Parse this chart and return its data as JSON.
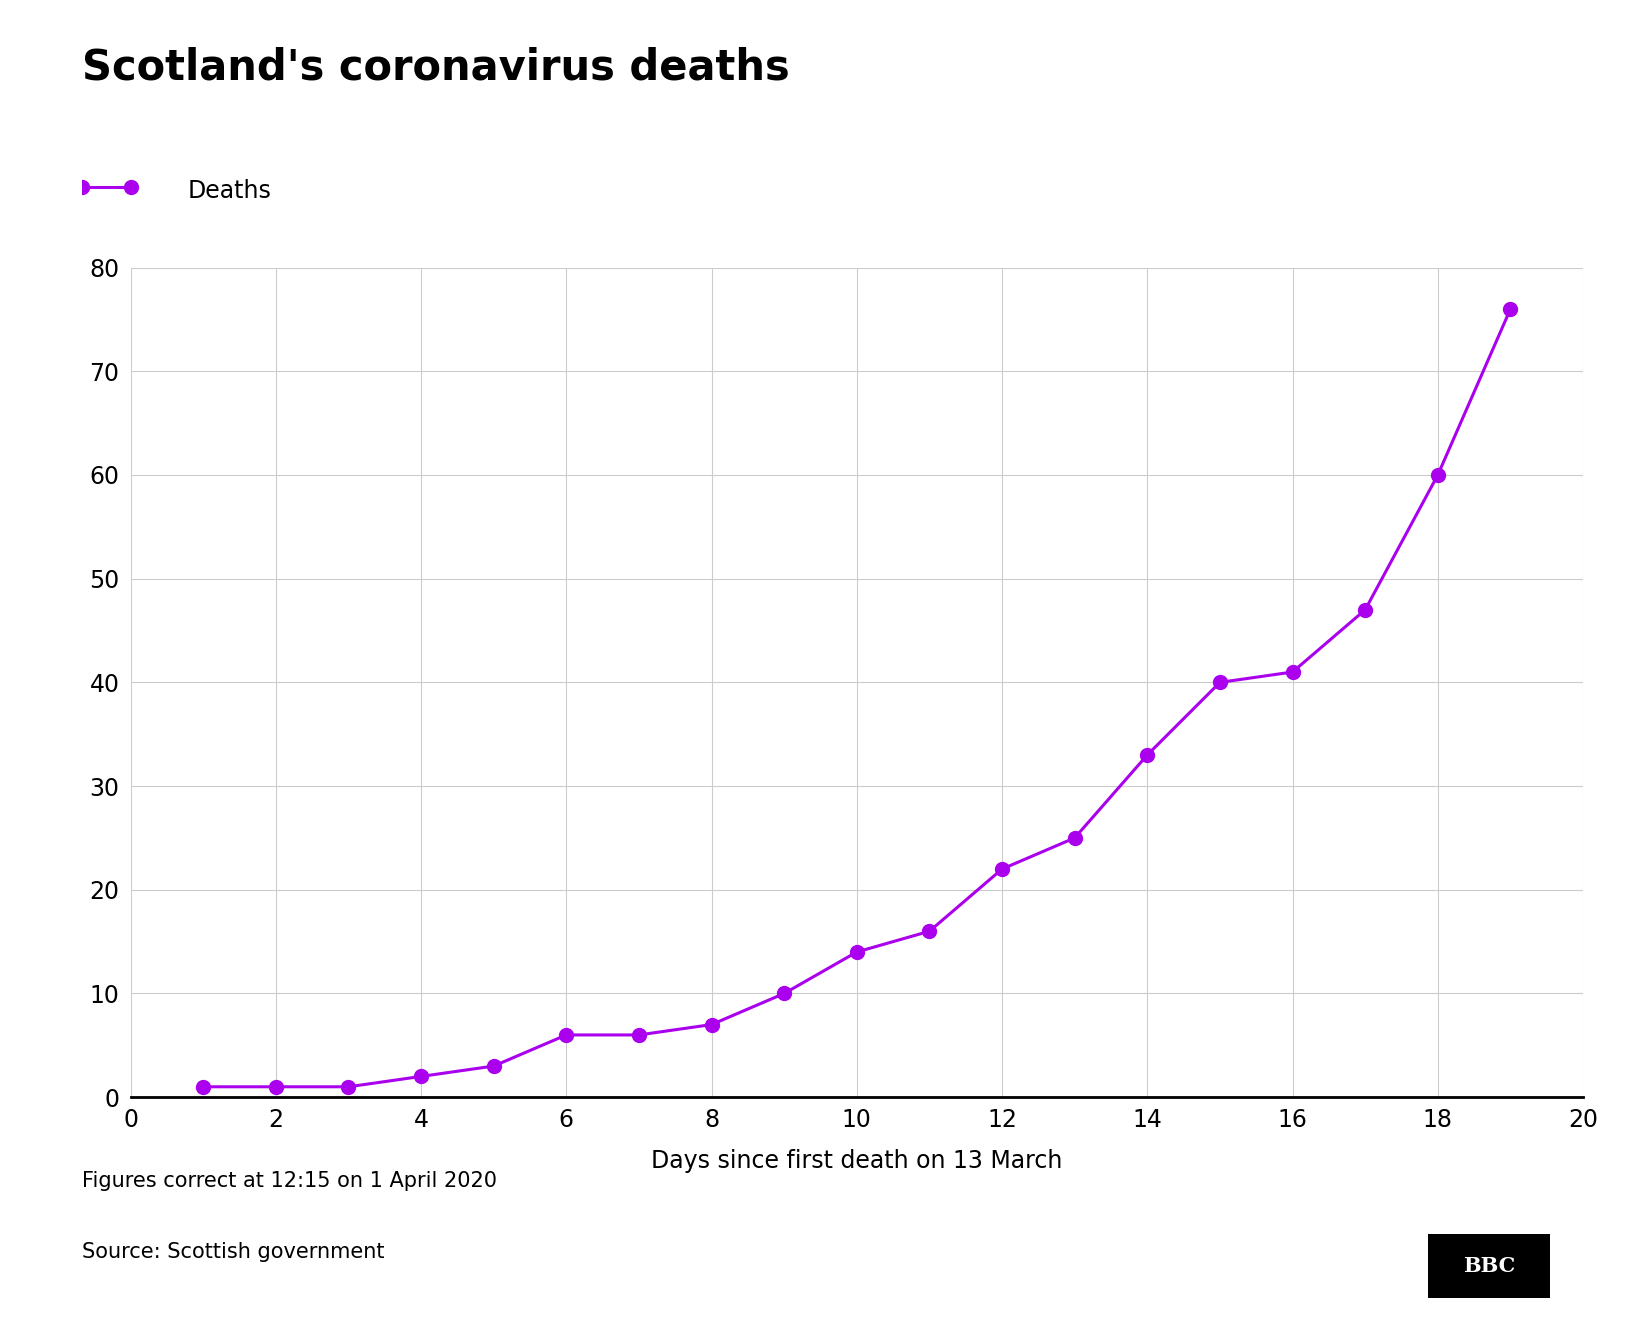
{
  "title": "Scotland's coronavirus deaths",
  "legend_label": "Deaths",
  "xlabel": "Days since first death on 13 March",
  "footnote": "Figures correct at 12:15 on 1 April 2020",
  "source": "Source: Scottish government",
  "x": [
    1,
    2,
    3,
    4,
    5,
    6,
    7,
    8,
    9,
    10,
    11,
    12,
    13,
    14,
    15,
    16,
    17,
    18,
    19
  ],
  "y": [
    1,
    1,
    1,
    2,
    3,
    6,
    6,
    7,
    10,
    14,
    16,
    22,
    25,
    33,
    40,
    41,
    47,
    60,
    76
  ],
  "line_color": "#aa00ee",
  "marker_color": "#aa00ee",
  "background_color": "#ffffff",
  "grid_color": "#cccccc",
  "xlim": [
    0,
    20
  ],
  "ylim": [
    0,
    80
  ],
  "xticks": [
    0,
    2,
    4,
    6,
    8,
    10,
    12,
    14,
    16,
    18,
    20
  ],
  "yticks": [
    0,
    10,
    20,
    30,
    40,
    50,
    60,
    70,
    80
  ],
  "title_fontsize": 30,
  "label_fontsize": 17,
  "tick_fontsize": 17,
  "footnote_fontsize": 15,
  "source_fontsize": 15,
  "legend_fontsize": 17,
  "marker_size": 10,
  "line_width": 2.2
}
